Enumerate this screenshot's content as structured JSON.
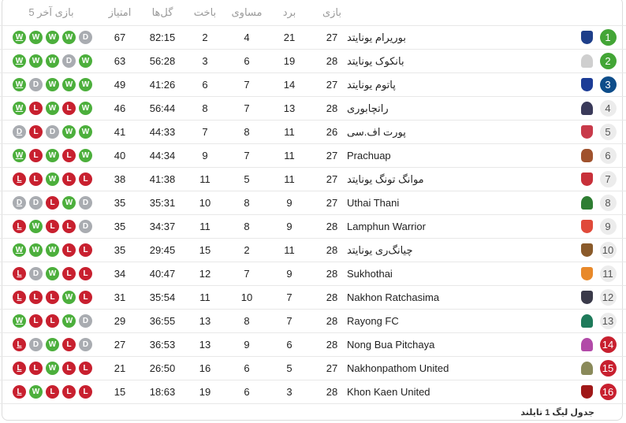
{
  "headers": {
    "played": "بازی",
    "won": "برد",
    "drawn": "مساوی",
    "lost": "باخت",
    "goals": "گل‌ها",
    "points": "امتیاز",
    "form": "5 بازی آخر"
  },
  "colors": {
    "W": "#4caf3c",
    "D": "#a9acb1",
    "L": "#c8202f",
    "pos_green": "#43a536",
    "pos_blue": "#0e4d8a",
    "pos_red": "#c8202f",
    "pos_neutral": "#ececec"
  },
  "rows": [
    {
      "pos": "1",
      "zone": "green",
      "team": "بوریرام یونایتد",
      "logo": "shield-icon",
      "logo_color": "#1e3f8a",
      "played": "27",
      "won": "21",
      "drawn": "4",
      "lost": "2",
      "goals": "82:15",
      "points": "67",
      "form": [
        "W",
        "W",
        "W",
        "W",
        "D"
      ]
    },
    {
      "pos": "2",
      "zone": "green",
      "team": "بانکوک یونایتد",
      "logo": "crest-icon",
      "logo_color": "#cfcfcf",
      "played": "28",
      "won": "19",
      "drawn": "6",
      "lost": "3",
      "goals": "56:28",
      "points": "63",
      "form": [
        "W",
        "W",
        "W",
        "D",
        "W"
      ]
    },
    {
      "pos": "3",
      "zone": "blue",
      "team": "پاتوم یونایتد",
      "logo": "shield-icon",
      "logo_color": "#1c3c96",
      "played": "27",
      "won": "14",
      "drawn": "7",
      "lost": "6",
      "goals": "41:26",
      "points": "49",
      "form": [
        "W",
        "D",
        "W",
        "W",
        "W"
      ]
    },
    {
      "pos": "4",
      "zone": "neutral",
      "team": "راتچابوری",
      "logo": "crest-icon",
      "logo_color": "#3a3a5a",
      "played": "28",
      "won": "13",
      "drawn": "7",
      "lost": "8",
      "goals": "56:44",
      "points": "46",
      "form": [
        "W",
        "L",
        "W",
        "L",
        "W"
      ]
    },
    {
      "pos": "5",
      "zone": "neutral",
      "team": "پورت اف.سی",
      "logo": "shield-icon",
      "logo_color": "#c83a4a",
      "played": "26",
      "won": "11",
      "drawn": "8",
      "lost": "7",
      "goals": "44:33",
      "points": "41",
      "form": [
        "D",
        "L",
        "D",
        "W",
        "W"
      ]
    },
    {
      "pos": "6",
      "zone": "neutral",
      "team": "Prachuap",
      "logo": "bull-icon",
      "logo_color": "#a0522d",
      "played": "27",
      "won": "11",
      "drawn": "7",
      "lost": "9",
      "goals": "44:34",
      "points": "40",
      "form": [
        "W",
        "L",
        "W",
        "L",
        "W"
      ]
    },
    {
      "pos": "7",
      "zone": "neutral",
      "team": "موانگ تونگ یونایتد",
      "logo": "shield-icon",
      "logo_color": "#c8303a",
      "played": "27",
      "won": "11",
      "drawn": "5",
      "lost": "11",
      "goals": "41:38",
      "points": "38",
      "form": [
        "L",
        "L",
        "W",
        "L",
        "L"
      ]
    },
    {
      "pos": "8",
      "zone": "neutral",
      "team": "Uthai Thani",
      "logo": "crest-icon",
      "logo_color": "#2e7d32",
      "played": "27",
      "won": "9",
      "drawn": "8",
      "lost": "10",
      "goals": "35:31",
      "points": "35",
      "form": [
        "D",
        "D",
        "L",
        "W",
        "D"
      ]
    },
    {
      "pos": "9",
      "zone": "neutral",
      "team": "Lamphun Warrior",
      "logo": "shield-icon",
      "logo_color": "#e04a3a",
      "played": "28",
      "won": "9",
      "drawn": "8",
      "lost": "11",
      "goals": "34:37",
      "points": "35",
      "form": [
        "L",
        "W",
        "L",
        "L",
        "D"
      ]
    },
    {
      "pos": "10",
      "zone": "neutral",
      "team": "چیانگ‌ری یونایتد",
      "logo": "shield-icon",
      "logo_color": "#8a5a2a",
      "played": "28",
      "won": "11",
      "drawn": "2",
      "lost": "15",
      "goals": "29:45",
      "points": "35",
      "form": [
        "W",
        "W",
        "W",
        "L",
        "L"
      ]
    },
    {
      "pos": "11",
      "zone": "neutral",
      "team": "Sukhothai",
      "logo": "shield-icon",
      "logo_color": "#e8892a",
      "played": "28",
      "won": "9",
      "drawn": "7",
      "lost": "12",
      "goals": "40:47",
      "points": "34",
      "form": [
        "L",
        "D",
        "W",
        "L",
        "L"
      ]
    },
    {
      "pos": "12",
      "zone": "neutral",
      "team": "Nakhon Ratchasima",
      "logo": "shield-icon",
      "logo_color": "#3a3a4a",
      "played": "28",
      "won": "7",
      "drawn": "10",
      "lost": "11",
      "goals": "35:54",
      "points": "31",
      "form": [
        "L",
        "L",
        "L",
        "W",
        "L"
      ]
    },
    {
      "pos": "13",
      "zone": "neutral",
      "team": "Rayong FC",
      "logo": "crest-icon",
      "logo_color": "#1e7a5a",
      "played": "28",
      "won": "7",
      "drawn": "8",
      "lost": "13",
      "goals": "36:55",
      "points": "29",
      "form": [
        "W",
        "L",
        "L",
        "W",
        "D"
      ]
    },
    {
      "pos": "14",
      "zone": "red",
      "team": "Nong Bua Pitchaya",
      "logo": "crest-icon",
      "logo_color": "#b24aa8",
      "played": "28",
      "won": "6",
      "drawn": "9",
      "lost": "13",
      "goals": "36:53",
      "points": "27",
      "form": [
        "L",
        "D",
        "W",
        "L",
        "D"
      ]
    },
    {
      "pos": "15",
      "zone": "red",
      "team": "Nakhonpathom United",
      "logo": "crest-icon",
      "logo_color": "#8a8a5a",
      "played": "27",
      "won": "5",
      "drawn": "6",
      "lost": "16",
      "goals": "26:50",
      "points": "21",
      "form": [
        "L",
        "L",
        "W",
        "L",
        "L"
      ]
    },
    {
      "pos": "16",
      "zone": "red",
      "team": "Khon Kaen United",
      "logo": "shield-icon",
      "logo_color": "#a01818",
      "played": "28",
      "won": "3",
      "drawn": "6",
      "lost": "19",
      "goals": "18:63",
      "points": "15",
      "form": [
        "L",
        "W",
        "L",
        "L",
        "L"
      ]
    }
  ],
  "footer": "جدول لیگ 1 تایلند"
}
